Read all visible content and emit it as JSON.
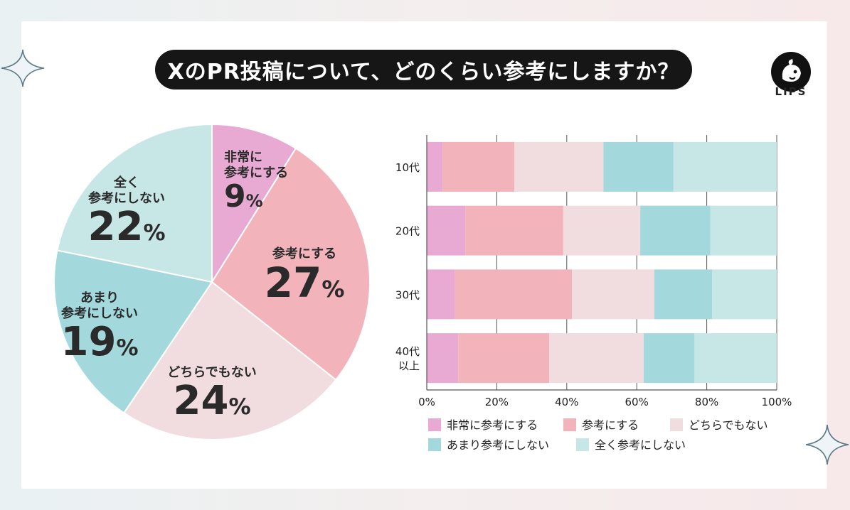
{
  "header": {
    "title": "XのPR投稿について、どのくらい参考にしますか？",
    "brand": "LIPS"
  },
  "colors": {
    "very_much": "#e8a9d3",
    "reference": "#f2b3ba",
    "neutral": "#f1dde0",
    "not_much": "#a3d8dd",
    "not_at_all": "#c7e6e6"
  },
  "chart_data": [
    {
      "type": "pie",
      "title": "",
      "slices": [
        {
          "label_lines": [
            "非常に",
            "参考にする"
          ],
          "value": 9,
          "pct_text": "9",
          "color": "#e8a9d3"
        },
        {
          "label_lines": [
            "参考にする"
          ],
          "value": 27,
          "pct_text": "27",
          "color": "#f2b3ba"
        },
        {
          "label_lines": [
            "どちらでもない"
          ],
          "value": 24,
          "pct_text": "24",
          "color": "#f1dde0"
        },
        {
          "label_lines": [
            "あまり",
            "参考にしない"
          ],
          "value": 19,
          "pct_text": "19",
          "color": "#a3d8dd"
        },
        {
          "label_lines": [
            "全く",
            "参考にしない"
          ],
          "value": 22,
          "pct_text": "22",
          "color": "#c7e6e6"
        }
      ],
      "percent_sign": "%"
    },
    {
      "type": "bar",
      "orientation": "horizontal",
      "stacked": true,
      "categories": [
        [
          "10代"
        ],
        [
          "20代"
        ],
        [
          "30代"
        ],
        [
          "40代",
          "以上"
        ]
      ],
      "series": [
        {
          "name": "非常に参考にする",
          "color": "#e8a9d3",
          "values": [
            4.5,
            11,
            8,
            9
          ]
        },
        {
          "name": "参考にする",
          "color": "#f2b3ba",
          "values": [
            20.5,
            28,
            33.5,
            26
          ]
        },
        {
          "name": "どちらでもない",
          "color": "#f1dde0",
          "values": [
            25.5,
            22,
            23.5,
            27
          ]
        },
        {
          "name": "あまり参考にしない",
          "color": "#a3d8dd",
          "values": [
            20,
            20,
            16.5,
            14.5
          ]
        },
        {
          "name": "全く参考にしない",
          "color": "#c7e6e6",
          "values": [
            29.5,
            19,
            18.5,
            23.5
          ]
        }
      ],
      "xlim": [
        0,
        100
      ],
      "xticks": [
        "0%",
        "20%",
        "40%",
        "60%",
        "80%",
        "100%"
      ],
      "xlabel": "",
      "ylabel": "",
      "grid": true,
      "legend_position": "bottom"
    }
  ]
}
